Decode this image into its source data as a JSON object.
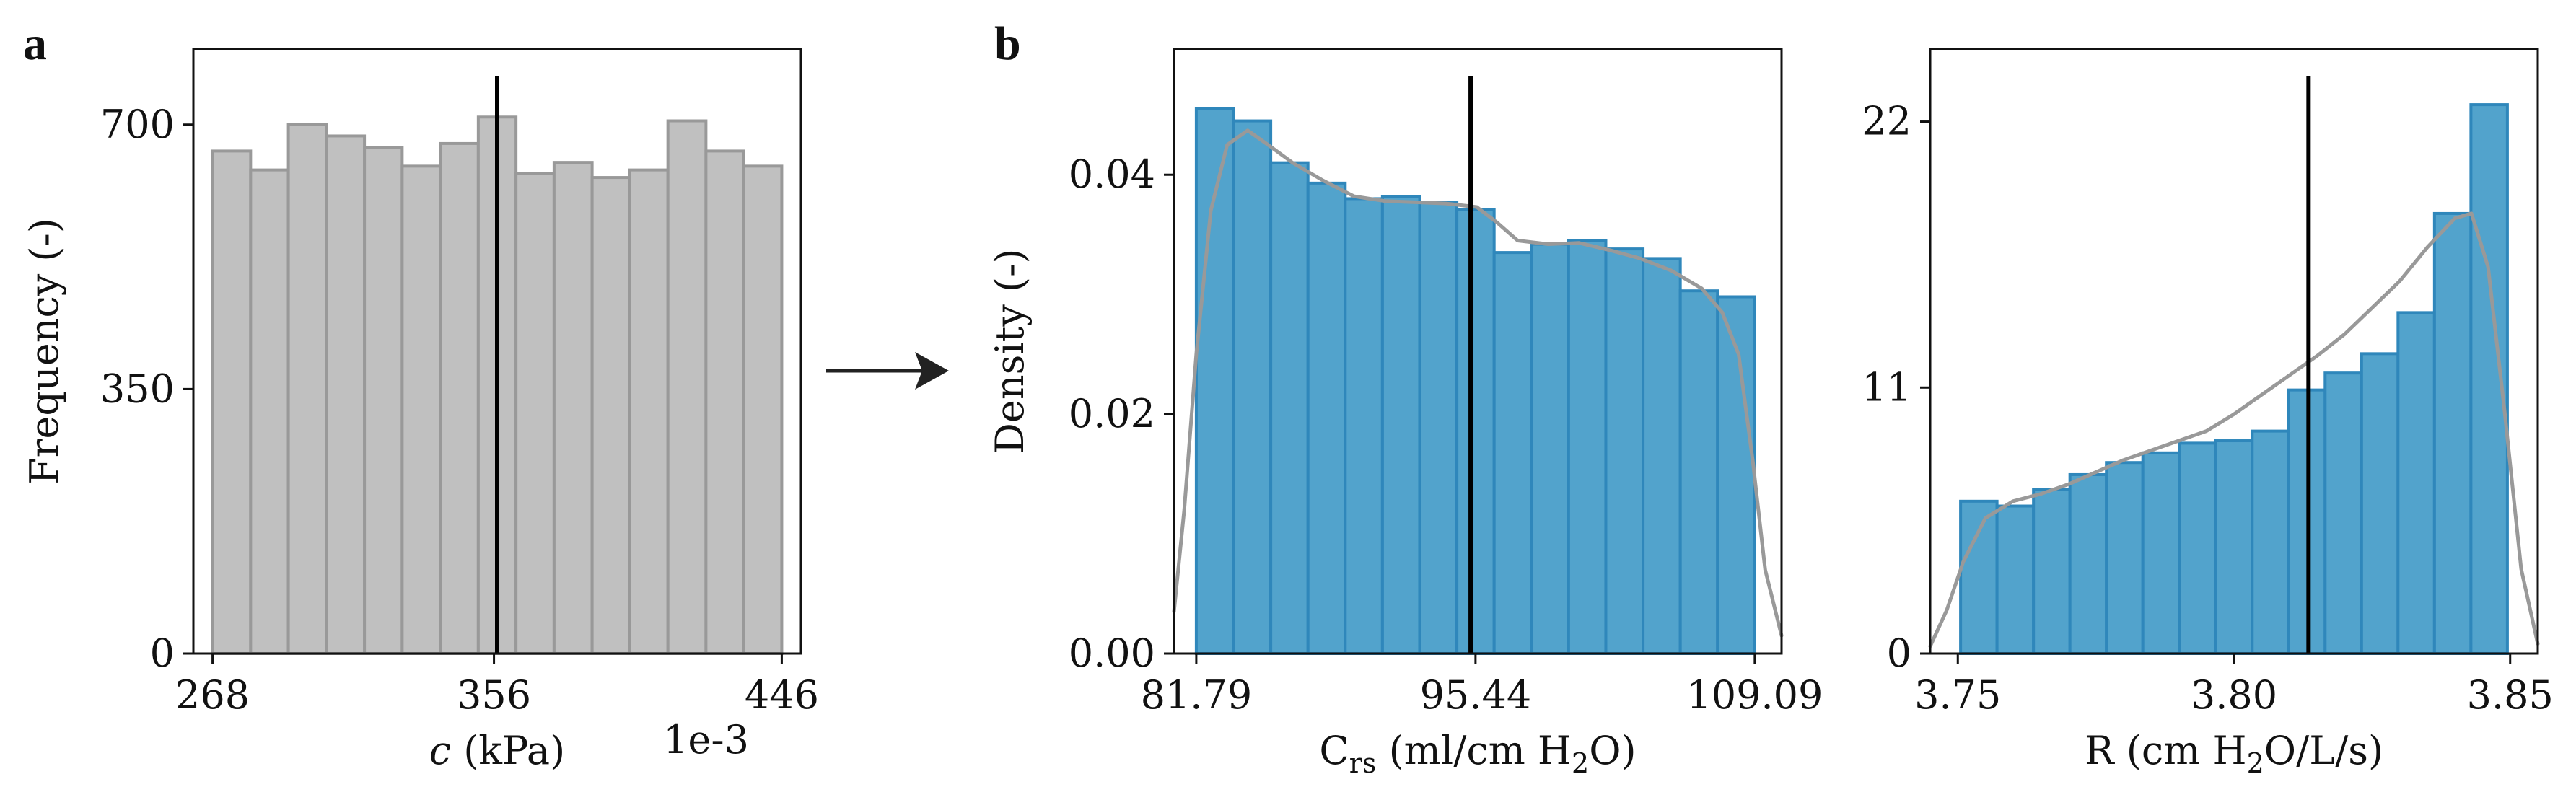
{
  "figure": {
    "panel_labels": [
      "a",
      "b"
    ],
    "arrow_icon": "right-arrow-icon"
  },
  "chart_data": [
    {
      "type": "bar",
      "panel": "a",
      "xlabel_italic": "c",
      "xlabel_rest": "(kPa)",
      "ylabel": "Frequency (-)",
      "offset_text": "1e-3",
      "xlim": [
        262,
        452
      ],
      "ylim": [
        0,
        800
      ],
      "xticks": [
        268,
        356,
        446
      ],
      "xtick_labels": [
        "268",
        "356",
        "446"
      ],
      "yticks": [
        0,
        350,
        700
      ],
      "ytick_labels": [
        "0",
        "350",
        "700"
      ],
      "bin_edges": [
        268,
        279.9,
        291.7,
        303.6,
        315.5,
        327.3,
        339.2,
        351.1,
        362.9,
        374.8,
        386.7,
        398.5,
        410.4,
        422.3,
        434.1,
        446
      ],
      "values": [
        665,
        640,
        700,
        685,
        670,
        645,
        675,
        710,
        635,
        650,
        630,
        640,
        705,
        665,
        645
      ],
      "fill_color": "#c0c0c0",
      "edge_color": "#999999",
      "marker_x": 357,
      "marker_color": "#000000"
    },
    {
      "type": "bar",
      "panel": "b-left",
      "xlabel_main": "C",
      "xlabel_sub": "rs",
      "xlabel_rest": " (ml/cm H",
      "xlabel_sub2": "2",
      "xlabel_tail": "O)",
      "ylabel": "Density (-)",
      "xlim": [
        80.7,
        110.4
      ],
      "ylim": [
        0,
        0.0505
      ],
      "xticks": [
        81.79,
        95.44,
        109.09
      ],
      "xtick_labels": [
        "81.79",
        "95.44",
        "109.09"
      ],
      "yticks": [
        0.0,
        0.02,
        0.04
      ],
      "ytick_labels": [
        "0.00",
        "0.02",
        "0.04"
      ],
      "bin_edges": [
        81.79,
        83.61,
        85.43,
        87.25,
        89.07,
        90.89,
        92.71,
        94.53,
        96.35,
        98.17,
        99.99,
        101.81,
        103.63,
        105.45,
        107.27,
        109.09
      ],
      "values": [
        0.0455,
        0.0445,
        0.041,
        0.0393,
        0.038,
        0.0382,
        0.0377,
        0.0371,
        0.0335,
        0.0342,
        0.0345,
        0.0338,
        0.033,
        0.0303,
        0.0298
      ],
      "kde_x": [
        80.7,
        81.2,
        81.79,
        82.5,
        83.3,
        84.3,
        85.3,
        86.5,
        88,
        89.5,
        91,
        92.5,
        94,
        95.5,
        96.5,
        97.5,
        99,
        100.5,
        102,
        103.5,
        105,
        106.5,
        107.5,
        108.3,
        109,
        109.6,
        110.4
      ],
      "kde_y": [
        0.0035,
        0.012,
        0.025,
        0.037,
        0.0425,
        0.0437,
        0.0425,
        0.041,
        0.0395,
        0.0382,
        0.0378,
        0.0377,
        0.0376,
        0.0373,
        0.036,
        0.0345,
        0.0342,
        0.0343,
        0.0337,
        0.033,
        0.032,
        0.0305,
        0.0285,
        0.025,
        0.016,
        0.007,
        0.0015
      ],
      "fill_color": "#52a3cc",
      "edge_color": "#2f87bb",
      "kde_color": "#999999",
      "marker_x": 95.2,
      "marker_color": "#000000"
    },
    {
      "type": "bar",
      "panel": "b-right",
      "xlabel_main": "R (cm H",
      "xlabel_sub": "2",
      "xlabel_rest": "O/L/s)",
      "xlim": [
        3.745,
        3.855
      ],
      "ylim": [
        0,
        25
      ],
      "xticks": [
        3.75,
        3.8,
        3.85
      ],
      "xtick_labels": [
        "3.75",
        "3.80",
        "3.85"
      ],
      "yticks": [
        0,
        11,
        22
      ],
      "ytick_labels": [
        "0",
        "11",
        "22"
      ],
      "bin_edges": [
        3.7505,
        3.7571,
        3.7637,
        3.7703,
        3.7769,
        3.7835,
        3.7901,
        3.7967,
        3.8033,
        3.8099,
        3.8165,
        3.8231,
        3.8297,
        3.8363,
        3.8429,
        3.8495
      ],
      "values": [
        6.3,
        6.1,
        6.8,
        7.4,
        7.9,
        8.3,
        8.7,
        8.8,
        9.2,
        10.9,
        11.6,
        12.4,
        14.1,
        18.2,
        22.7
      ],
      "kde_x": [
        3.745,
        3.748,
        3.751,
        3.755,
        3.76,
        3.765,
        3.77,
        3.775,
        3.78,
        3.785,
        3.79,
        3.795,
        3.8,
        3.805,
        3.81,
        3.815,
        3.82,
        3.825,
        3.83,
        3.835,
        3.84,
        3.843,
        3.846,
        3.849,
        3.852,
        3.855
      ],
      "kde_y": [
        0.3,
        1.8,
        3.8,
        5.6,
        6.3,
        6.6,
        7.0,
        7.5,
        8.0,
        8.4,
        8.8,
        9.2,
        9.9,
        10.7,
        11.5,
        12.3,
        13.2,
        14.3,
        15.4,
        16.8,
        18.0,
        18.2,
        16.0,
        10.0,
        3.5,
        0.4
      ],
      "fill_color": "#52a3cc",
      "edge_color": "#2f87bb",
      "kde_color": "#999999",
      "marker_x": 3.8135,
      "marker_color": "#000000"
    }
  ]
}
